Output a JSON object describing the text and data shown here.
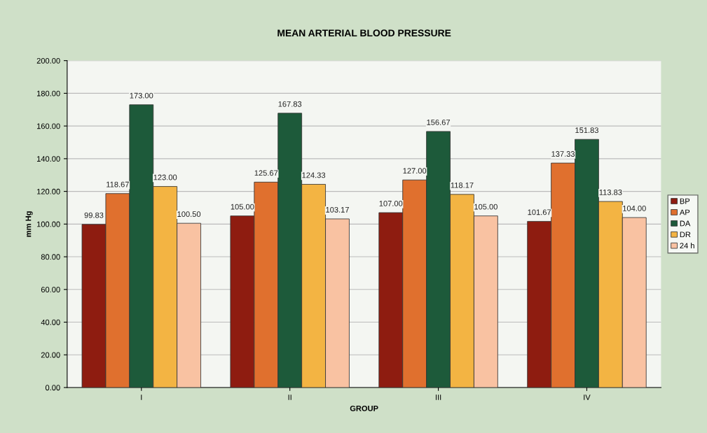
{
  "chart_data": {
    "type": "bar",
    "title": "MEAN ARTERIAL BLOOD PRESSURE",
    "xlabel": "GROUP",
    "ylabel": "mm Hg",
    "categories": [
      "I",
      "II",
      "III",
      "IV"
    ],
    "series": [
      {
        "name": "BP",
        "color": "#8e1c10",
        "values": [
          99.83,
          105.0,
          107.0,
          101.67
        ],
        "value_labels": [
          "99.83",
          "105.00",
          "107.00",
          "101.67"
        ]
      },
      {
        "name": "AP",
        "color": "#e0702e",
        "values": [
          118.67,
          125.67,
          127.0,
          137.33
        ],
        "value_labels": [
          "118.67",
          "125.67",
          "127.00",
          "137.33"
        ]
      },
      {
        "name": "DA",
        "color": "#1d5a3a",
        "values": [
          173.0,
          167.83,
          156.67,
          151.83
        ],
        "value_labels": [
          "173.00",
          "167.83",
          "156.67",
          "151.83"
        ]
      },
      {
        "name": "DR",
        "color": "#f3b443",
        "values": [
          123.0,
          124.33,
          118.17,
          113.83
        ],
        "value_labels": [
          "123.00",
          "124.33",
          "118.17",
          "113.83"
        ]
      },
      {
        "name": "24 h",
        "color": "#f9c2a2",
        "values": [
          100.5,
          103.17,
          105.0,
          104.0
        ],
        "value_labels": [
          "100.50",
          "103.17",
          "105.00",
          "104.00"
        ]
      }
    ],
    "ylim": [
      0,
      200
    ],
    "yticks": [
      {
        "value": 0,
        "label": "0.00"
      },
      {
        "value": 20,
        "label": "20.00"
      },
      {
        "value": 40,
        "label": "40.00"
      },
      {
        "value": 60,
        "label": "60.00"
      },
      {
        "value": 80,
        "label": "80.00"
      },
      {
        "value": 100,
        "label": "100.00"
      },
      {
        "value": 120,
        "label": "120.00"
      },
      {
        "value": 140,
        "label": "140.00"
      },
      {
        "value": 160,
        "label": "160.00"
      },
      {
        "value": 180,
        "label": "180.00"
      },
      {
        "value": 200,
        "label": "200.00"
      }
    ],
    "grid": "y",
    "legend": "right"
  }
}
